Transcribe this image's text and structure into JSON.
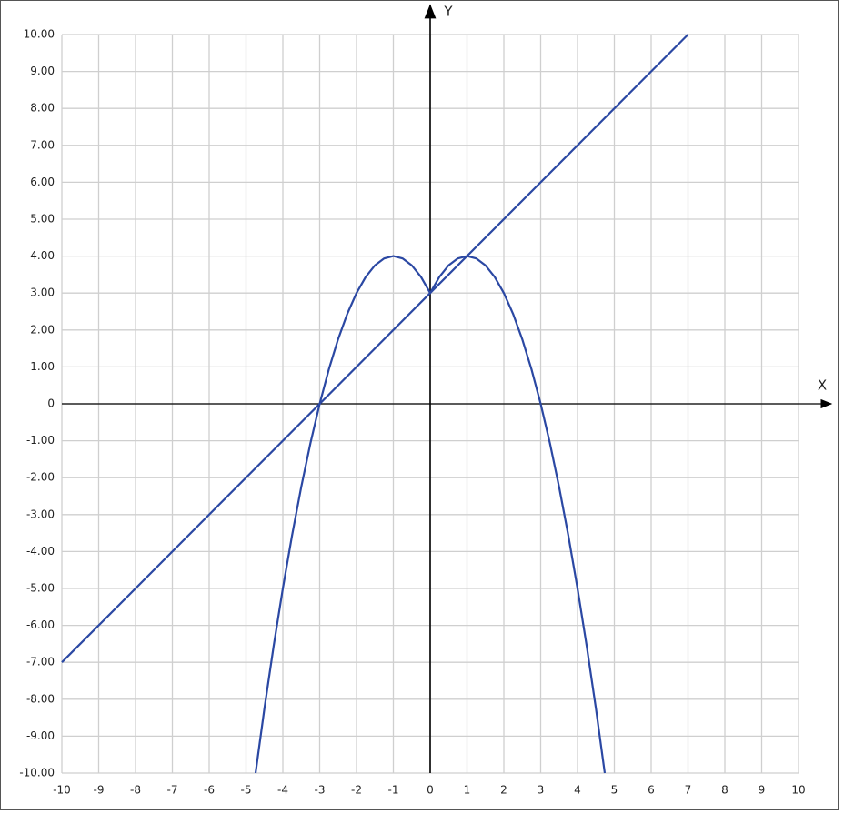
{
  "chart_data": {
    "type": "line",
    "x_label": "X",
    "y_label": "Y",
    "xlim": [
      -10,
      10
    ],
    "ylim": [
      -10,
      10
    ],
    "xticks": [
      -10,
      -9,
      -8,
      -7,
      -6,
      -5,
      -4,
      -3,
      -2,
      -1,
      0,
      1,
      2,
      3,
      4,
      5,
      6,
      7,
      8,
      9,
      10
    ],
    "yticks": [
      {
        "value": -10,
        "label": "-10.00"
      },
      {
        "value": -9,
        "label": "-9.00"
      },
      {
        "value": -8,
        "label": "-8.00"
      },
      {
        "value": -7,
        "label": "-7.00"
      },
      {
        "value": -6,
        "label": "-6.00"
      },
      {
        "value": -5,
        "label": "-5.00"
      },
      {
        "value": -4,
        "label": "-4.00"
      },
      {
        "value": -3,
        "label": "-3.00"
      },
      {
        "value": -2,
        "label": "-2.00"
      },
      {
        "value": -1,
        "label": "-1.00"
      },
      0,
      {
        "value": 1,
        "label": "1.00"
      },
      {
        "value": 2,
        "label": "2.00"
      },
      {
        "value": 3,
        "label": "3.00"
      },
      {
        "value": 4,
        "label": "4.00"
      },
      {
        "value": 5,
        "label": "5.00"
      },
      {
        "value": 6,
        "label": "6.00"
      },
      {
        "value": 7,
        "label": "7.00"
      },
      {
        "value": 8,
        "label": "8.00"
      },
      {
        "value": 9,
        "label": "9.00"
      },
      {
        "value": 10,
        "label": "10.00"
      }
    ],
    "grid": true,
    "series": [
      {
        "color": "#2b48a3",
        "x": [
          -4.74,
          -4.5,
          -4.25,
          -4,
          -3.75,
          -3.5,
          -3.25,
          -3,
          -2.75,
          -2.5,
          -2.25,
          -2,
          -1.75,
          -1.5,
          -1.25,
          -1,
          -0.75,
          -0.5,
          -0.25,
          0,
          0.25,
          0.5,
          0.75,
          1,
          1.25,
          1.5,
          1.75,
          2,
          2.25,
          2.5,
          2.75,
          3,
          3.25,
          3.5,
          3.75,
          4,
          4.25,
          4.5,
          4.74
        ],
        "values": [
          -10,
          -8.25,
          -6.5625,
          -5,
          -3.5625,
          -2.25,
          -1.0625,
          0,
          0.9375,
          1.75,
          2.4375,
          3,
          3.4375,
          3.75,
          3.9375,
          4,
          3.9375,
          3.75,
          3.4375,
          3,
          3.4375,
          3.75,
          3.9375,
          4,
          3.9375,
          3.75,
          3.4375,
          3,
          2.4375,
          1.75,
          0.9375,
          0,
          -1.0625,
          -2.25,
          -3.5625,
          -5,
          -6.5625,
          -8.25,
          -10
        ]
      },
      {
        "color": "#2b48a3",
        "x": [
          -10,
          7
        ],
        "values": [
          -7,
          10
        ]
      }
    ]
  }
}
